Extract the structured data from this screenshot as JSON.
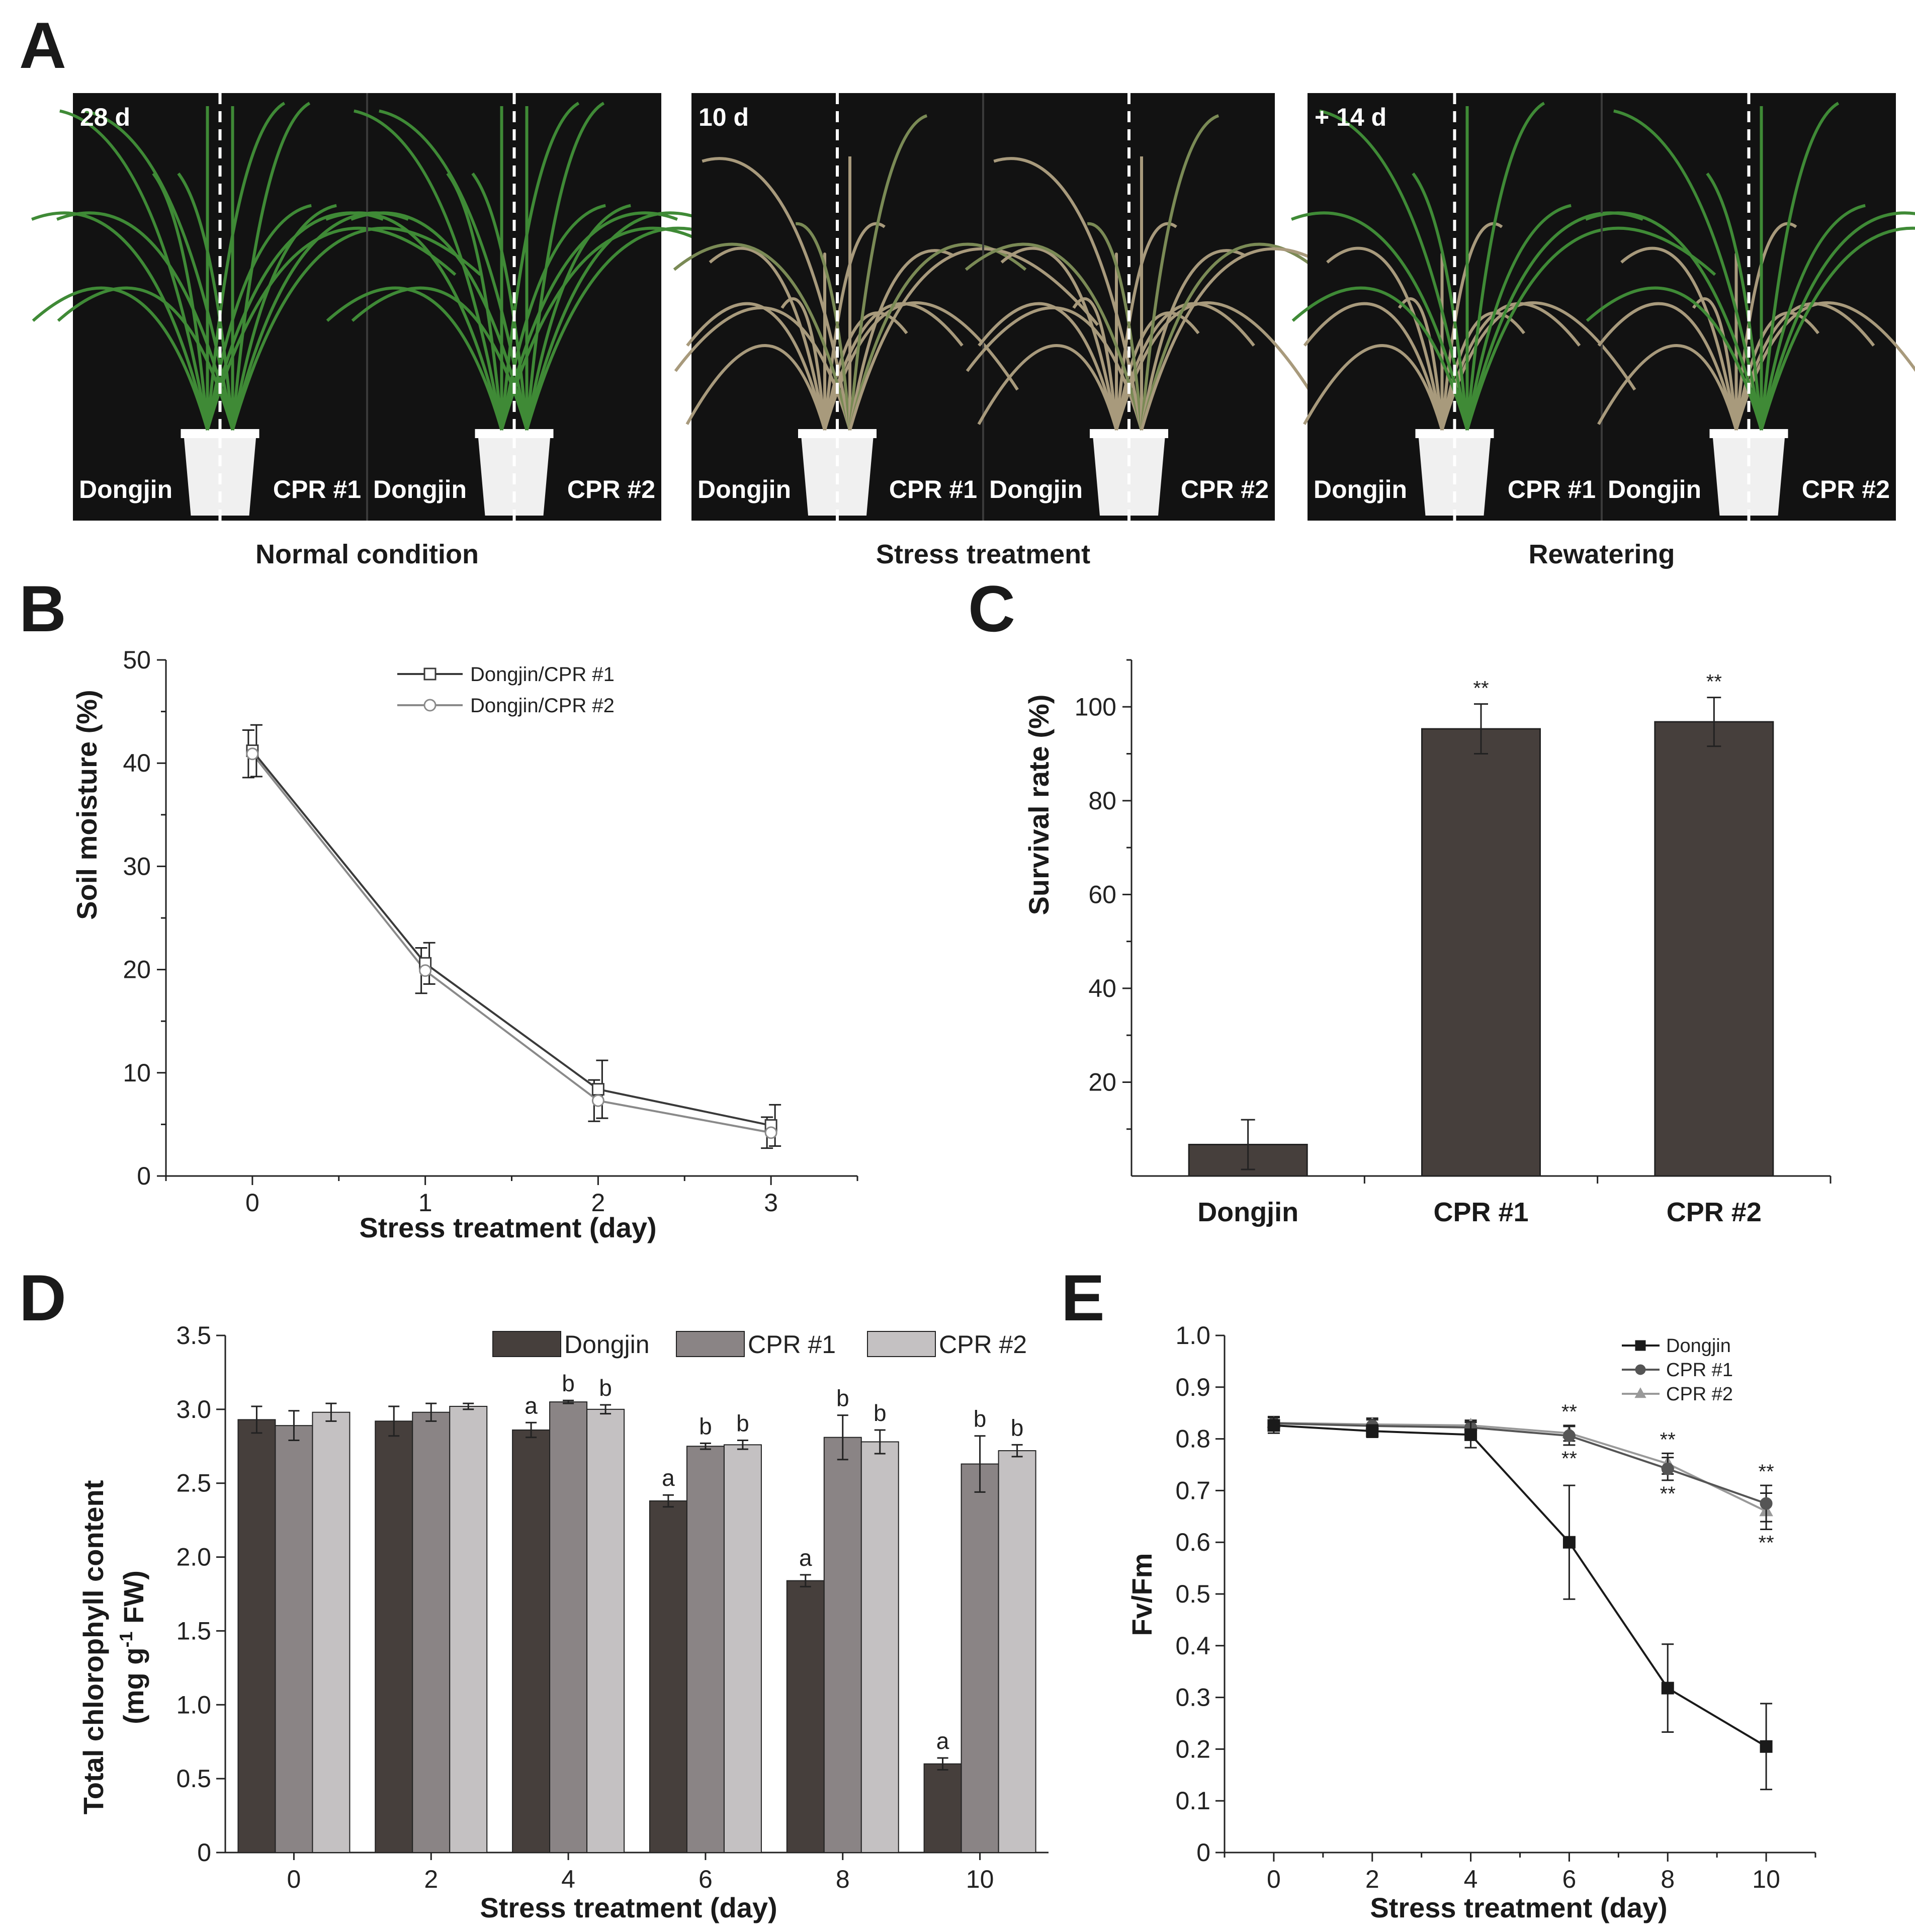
{
  "panel_a": {
    "label": "A",
    "groups": [
      {
        "time": "28 d",
        "left_labels": [
          "Dongjin",
          "CPR #1"
        ],
        "right_labels": [
          "Dongjin",
          "CPR #2"
        ],
        "caption": "Normal condition",
        "state": "healthy"
      },
      {
        "time": "10 d",
        "left_labels": [
          "Dongjin",
          "CPR #1"
        ],
        "right_labels": [
          "Dongjin",
          "CPR #2"
        ],
        "caption": "Stress treatment",
        "state": "stressed"
      },
      {
        "time": "+ 14 d",
        "left_labels": [
          "Dongjin",
          "CPR #1"
        ],
        "right_labels": [
          "Dongjin",
          "CPR #2"
        ],
        "caption": "Rewatering",
        "state": "recovered"
      }
    ]
  },
  "colors": {
    "dark": "#463f3c",
    "mid": "#8a8485",
    "light": "#c4c1c2",
    "photo_bg": "#121212",
    "pot": "#f0f0f0",
    "leaf_green": "#3f8a36",
    "leaf_dry": "#a89a7c"
  },
  "chart_data": [
    {
      "panel": "B",
      "type": "line",
      "title": "",
      "xlabel": "Stress treatment (day)",
      "ylabel": "Soil moisture (%)",
      "x": [
        0,
        1,
        2,
        3
      ],
      "xticks": [
        "0",
        "1",
        "2",
        "3"
      ],
      "xlim": [
        -0.5,
        3.5
      ],
      "ylim": [
        0,
        50
      ],
      "yticks": [
        "0",
        "10",
        "20",
        "30",
        "40",
        "50"
      ],
      "legend": "top-right",
      "series": [
        {
          "name": "Dongjin/CPR #1",
          "values": [
            41.2,
            20.6,
            8.4,
            4.9
          ],
          "errors": [
            2.5,
            2.0,
            2.8,
            2.0
          ],
          "marker": "square",
          "color": "#3a3a3a"
        },
        {
          "name": "Dongjin/CPR #2",
          "values": [
            40.9,
            19.9,
            7.3,
            4.2
          ],
          "errors": [
            2.3,
            2.2,
            2.0,
            1.5
          ],
          "marker": "circle",
          "color": "#8a8a8a"
        }
      ]
    },
    {
      "panel": "C",
      "type": "bar",
      "title": "",
      "xlabel": "",
      "ylabel": "Survival rate (%)",
      "categories": [
        "Dongjin",
        "CPR #1",
        "CPR #2"
      ],
      "values": [
        6.7,
        95.3,
        96.8
      ],
      "errors": [
        5.3,
        5.3,
        5.2
      ],
      "significance": [
        "",
        "**",
        "**"
      ],
      "ylim": [
        0,
        110
      ],
      "yticks": [
        "20",
        "40",
        "60",
        "80",
        "100"
      ]
    },
    {
      "panel": "D",
      "type": "bar",
      "title": "",
      "xlabel": "Stress treatment (day)",
      "ylabel": "Total chlorophyll content",
      "ylabel_units": "(mg g",
      "ylabel_exp": "-1",
      "ylabel_units_tail": " FW)",
      "categories": [
        "0",
        "2",
        "4",
        "6",
        "8",
        "10"
      ],
      "ylim": [
        0,
        3.5
      ],
      "yticks": [
        "0",
        "0.5",
        "1.0",
        "1.5",
        "2.0",
        "2.5",
        "3.0",
        "3.5"
      ],
      "legend": "top-right",
      "series": [
        {
          "name": "Dongjin",
          "values": [
            2.93,
            2.92,
            2.86,
            2.38,
            1.84,
            0.6
          ],
          "errors": [
            0.09,
            0.1,
            0.05,
            0.04,
            0.04,
            0.04
          ],
          "letters": [
            "",
            "",
            "a",
            "a",
            "a",
            "a"
          ]
        },
        {
          "name": "CPR #1",
          "values": [
            2.89,
            2.98,
            3.05,
            2.75,
            2.81,
            2.63
          ],
          "errors": [
            0.1,
            0.06,
            0.01,
            0.02,
            0.15,
            0.19
          ],
          "letters": [
            "",
            "",
            "b",
            "b",
            "b",
            "b"
          ]
        },
        {
          "name": "CPR #2",
          "values": [
            2.98,
            3.02,
            3.0,
            2.76,
            2.78,
            2.72
          ],
          "errors": [
            0.06,
            0.02,
            0.03,
            0.03,
            0.08,
            0.04
          ],
          "letters": [
            "",
            "",
            "b",
            "b",
            "b",
            "b"
          ]
        }
      ]
    },
    {
      "panel": "E",
      "type": "line",
      "title": "",
      "xlabel": "Stress treatment (day)",
      "ylabel": "Fv/Fm",
      "x": [
        0,
        2,
        4,
        6,
        8,
        10
      ],
      "xticks": [
        "0",
        "2",
        "4",
        "6",
        "8",
        "10"
      ],
      "xlim": [
        -1,
        11
      ],
      "ylim": [
        0,
        1.0
      ],
      "yticks": [
        "0",
        "0.1",
        "0.2",
        "0.3",
        "0.4",
        "0.5",
        "0.6",
        "0.7",
        "0.8",
        "0.9",
        "1.0"
      ],
      "legend": "top-right",
      "series": [
        {
          "name": "Dongjin",
          "values": [
            0.826,
            0.815,
            0.808,
            0.6,
            0.318,
            0.205
          ],
          "errors": [
            0.015,
            0.012,
            0.025,
            0.11,
            0.085,
            0.083
          ],
          "marker": "square",
          "color": "#1a1a1a"
        },
        {
          "name": "CPR #1",
          "values": [
            0.83,
            0.825,
            0.822,
            0.806,
            0.742,
            0.675
          ],
          "errors": [
            0.012,
            0.012,
            0.01,
            0.018,
            0.022,
            0.035
          ],
          "marker": "circle",
          "color": "#555555"
        },
        {
          "name": "CPR #2",
          "values": [
            0.831,
            0.828,
            0.826,
            0.811,
            0.752,
            0.66
          ],
          "errors": [
            0.012,
            0.012,
            0.01,
            0.015,
            0.02,
            0.035
          ],
          "marker": "triangle",
          "color": "#999999"
        }
      ],
      "annotations": [
        {
          "x": 6,
          "above": "**",
          "below": "**"
        },
        {
          "x": 8,
          "above": "**",
          "below": "**"
        },
        {
          "x": 10,
          "above": "**",
          "below": "**"
        }
      ]
    }
  ]
}
